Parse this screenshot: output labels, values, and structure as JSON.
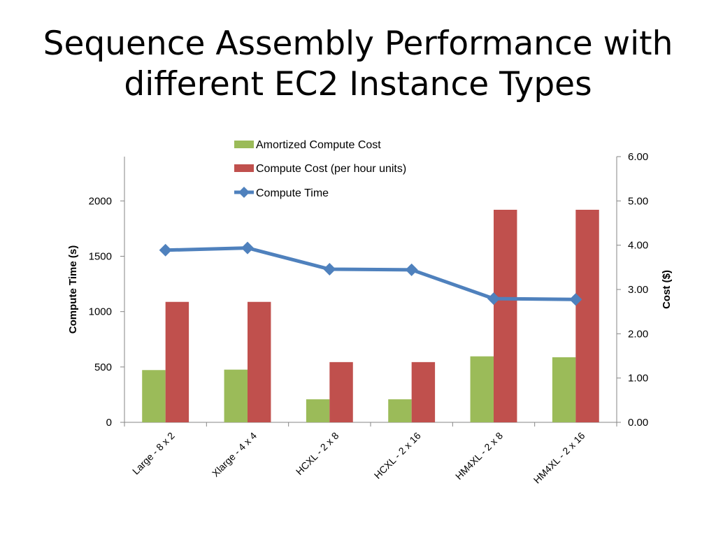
{
  "slide": {
    "title_line1": "Sequence Assembly Performance with",
    "title_line2": "different EC2 Instance Types"
  },
  "chart_data": {
    "type": "bar",
    "title": "",
    "categories": [
      "Large - 8 x 2",
      "Xlarge - 4 x 4",
      "HCXL - 2 x 8",
      "HCXL - 2 x 16",
      "HM4XL - 2 x 8",
      "HM4XL - 2 x 16"
    ],
    "series": [
      {
        "name": "Amortized Compute Cost",
        "kind": "bar",
        "axis": "right",
        "color": "#9BBB59",
        "values": [
          1.18,
          1.19,
          0.52,
          0.52,
          1.49,
          1.47
        ]
      },
      {
        "name": "Compute Cost (per hour units)",
        "kind": "bar",
        "axis": "right",
        "color": "#C0504D",
        "values": [
          2.72,
          2.72,
          1.36,
          1.36,
          4.8,
          4.8
        ]
      },
      {
        "name": "Compute Time",
        "kind": "line",
        "axis": "left",
        "color": "#4F81BD",
        "marker": "diamond",
        "values": [
          1555,
          1575,
          1383,
          1378,
          1117,
          1110
        ]
      }
    ],
    "y_left": {
      "label": "Compute Time (s)",
      "min": 0,
      "max": 2400,
      "ticks": [
        0,
        500,
        1000,
        1500,
        2000
      ],
      "tick_labels": [
        "0",
        "500",
        "1000",
        "1500",
        "2000"
      ]
    },
    "y_right": {
      "label": "Cost ($)",
      "min": 0,
      "max": 6,
      "ticks": [
        0,
        1,
        2,
        3,
        4,
        5,
        6
      ],
      "tick_labels": [
        "0.00",
        "1.00",
        "2.00",
        "3.00",
        "4.00",
        "5.00",
        "6.00"
      ]
    },
    "legend": {
      "position": "top"
    },
    "grid": false
  }
}
